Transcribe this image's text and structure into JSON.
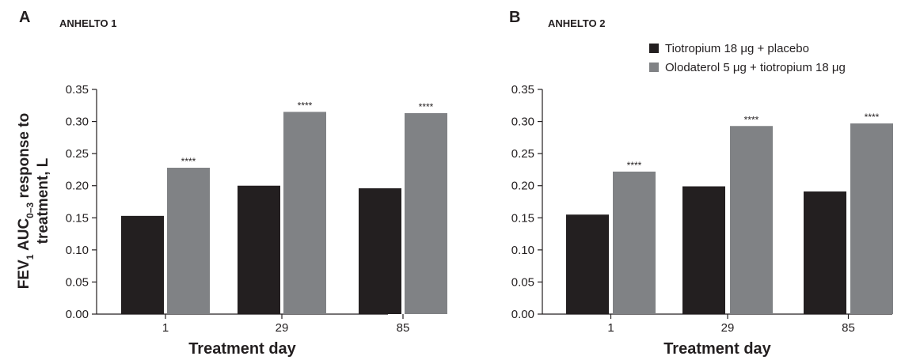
{
  "y_axis_label": {
    "line1_pre": "FEV",
    "line1_sub1": "1",
    "line1_mid": " AUC",
    "line1_sub2": "0–3",
    "line1_post": " response to",
    "line2": "treatment, L"
  },
  "colors": {
    "series1": "#231f20",
    "series2": "#808285",
    "axis": "#231f20"
  },
  "chart_data": [
    {
      "type": "bar",
      "panel_letter": "A",
      "title": "ANHELTO 1",
      "xlabel": "Treatment day",
      "ylabel": "FEV1 AUC0–3 response to treatment, L",
      "categories": [
        "1",
        "29",
        "85"
      ],
      "ylim": [
        0,
        0.35
      ],
      "yticks": [
        "0.00",
        "0.05",
        "0.10",
        "0.15",
        "0.20",
        "0.25",
        "0.30",
        "0.35"
      ],
      "series": [
        {
          "name": "Tiotropium 18 μg + placebo",
          "values": [
            0.153,
            0.2,
            0.196
          ]
        },
        {
          "name": "Olodaterol 5 μg + tiotropium 18 μg",
          "values": [
            0.228,
            0.315,
            0.313
          ]
        }
      ],
      "annotations": [
        "****",
        "****",
        "****"
      ],
      "legend": false,
      "grid": false
    },
    {
      "type": "bar",
      "panel_letter": "B",
      "title": "ANHELTO 2",
      "xlabel": "Treatment day",
      "ylabel": "",
      "categories": [
        "1",
        "29",
        "85"
      ],
      "ylim": [
        0,
        0.35
      ],
      "yticks": [
        "0.00",
        "0.05",
        "0.10",
        "0.15",
        "0.20",
        "0.25",
        "0.30",
        "0.35"
      ],
      "series": [
        {
          "name": "Tiotropium 18 μg + placebo",
          "values": [
            0.155,
            0.199,
            0.191
          ]
        },
        {
          "name": "Olodaterol 5 μg + tiotropium 18 μg",
          "values": [
            0.222,
            0.293,
            0.297
          ]
        }
      ],
      "annotations": [
        "****",
        "****",
        "****"
      ],
      "legend": true,
      "legend_position": "top-right",
      "grid": false
    }
  ]
}
